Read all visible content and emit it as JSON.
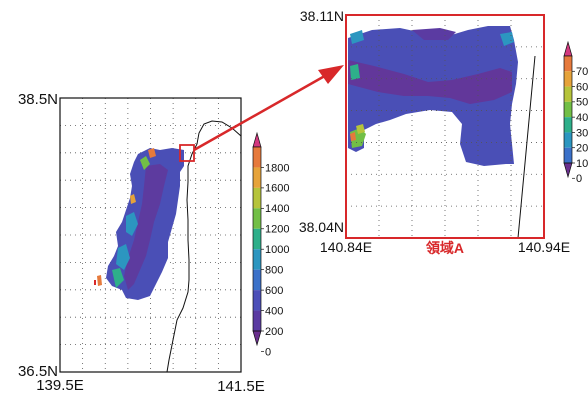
{
  "main_map": {
    "lat_top": "38.5N",
    "lat_bottom": "36.5N",
    "lon_left": "139.5E",
    "lon_right": "141.5E",
    "colorbar": {
      "ticks": [
        "1800",
        "1600",
        "1400",
        "1200",
        "1000",
        "800",
        "600",
        "400",
        "200",
        "0"
      ],
      "colors": [
        "#d3387f",
        "#e67a3c",
        "#e6a33a",
        "#b6c43b",
        "#72bf46",
        "#2eaf8a",
        "#2c96c0",
        "#3b71c9",
        "#4c4fb8",
        "#5b3ba2",
        "#6a2f8e"
      ]
    }
  },
  "region_a": {
    "label": "領域A",
    "lat_top": "38.11N",
    "lat_bottom": "38.04N",
    "lon_left": "140.84E",
    "lon_right": "140.94E",
    "colorbar": {
      "ticks": [
        "70",
        "60",
        "50",
        "40",
        "30",
        "20",
        "10",
        "0"
      ],
      "colors": [
        "#d3387f",
        "#e67a3c",
        "#e6a33a",
        "#b6c43b",
        "#72bf46",
        "#2eaf8a",
        "#2c96c0",
        "#3b71c9",
        "#6a2f8e"
      ]
    }
  },
  "colors": {
    "highlight": "#d8282a",
    "frame": "#111111",
    "land": "#ffffff",
    "raster_base": "#4a4fb6"
  }
}
